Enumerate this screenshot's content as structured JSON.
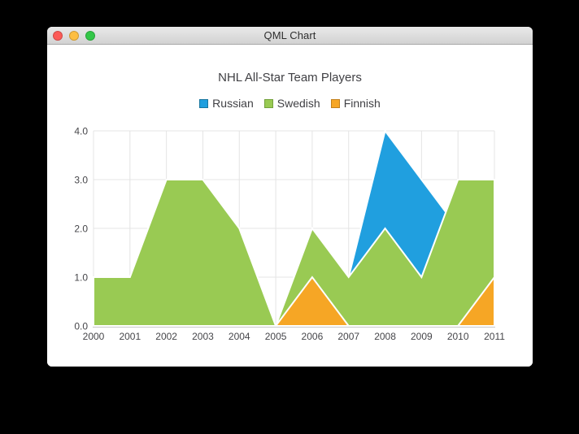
{
  "window": {
    "title": "QML Chart",
    "traffic_lights": [
      {
        "name": "close",
        "color": "#fc5b57"
      },
      {
        "name": "minimize",
        "color": "#fdbe41"
      },
      {
        "name": "zoom",
        "color": "#33c748"
      }
    ],
    "titlebar_text_color": "#2e2e2e"
  },
  "chart_data": {
    "type": "area",
    "title": "NHL All-Star Team Players",
    "stacked": false,
    "categories": [
      "2000",
      "2001",
      "2002",
      "2003",
      "2004",
      "2005",
      "2006",
      "2007",
      "2008",
      "2009",
      "2010",
      "2011"
    ],
    "series": [
      {
        "name": "Russian",
        "color": "#209fdf",
        "border_color": "#18769f",
        "values": [
          1,
          1,
          1,
          1,
          1,
          0,
          1,
          1,
          4,
          3,
          2,
          1
        ]
      },
      {
        "name": "Swedish",
        "color": "#99ca53",
        "border_color": "#73a13c",
        "values": [
          1,
          1,
          3,
          3,
          2,
          0,
          2,
          1,
          2,
          1,
          3,
          3
        ]
      },
      {
        "name": "Finnish",
        "color": "#f6a625",
        "border_color": "#c2801c",
        "values": [
          0,
          0,
          0,
          0,
          0,
          0,
          1,
          0,
          0,
          0,
          0,
          1
        ]
      }
    ],
    "ylim": [
      0,
      4
    ],
    "y_tick_labels": [
      "0.0",
      "1.0",
      "2.0",
      "3.0",
      "4.0"
    ],
    "grid": true,
    "grid_color": "#e4e4e4",
    "axis_line_color": "#c9c9c9",
    "axis_text_color": "#46464a",
    "area_outline_color": "#ffffff",
    "legend_position": "top"
  }
}
